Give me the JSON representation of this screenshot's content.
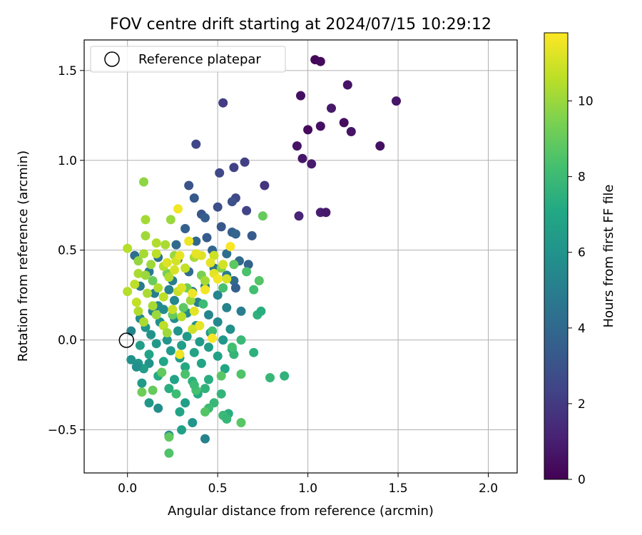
{
  "chart_data": {
    "type": "scatter",
    "title": "FOV centre drift starting at 2024/07/15 10:29:12",
    "xlabel": "Angular distance from reference (arcmin)",
    "ylabel": "Rotation from reference (arcmin)",
    "xlim": [
      -0.24,
      2.16
    ],
    "ylim": [
      -0.74,
      1.67
    ],
    "xticks": [
      0.0,
      0.5,
      1.0,
      1.5,
      2.0
    ],
    "xtick_labels": [
      "0.0",
      "0.5",
      "1.0",
      "1.5",
      "2.0"
    ],
    "yticks": [
      -0.5,
      0.0,
      0.5,
      1.0,
      1.5
    ],
    "ytick_labels": [
      "−0.5",
      "0.0",
      "0.5",
      "1.0",
      "1.5"
    ],
    "grid": true,
    "legend": {
      "position": "upper-left",
      "entries": [
        {
          "label": "Reference platepar",
          "marker": "open-circle"
        }
      ]
    },
    "reference_point": {
      "x": 0.0,
      "y": 0.0
    },
    "colorbar": {
      "label": "Hours from first FF file",
      "colormap": "viridis",
      "range": [
        0,
        11.8
      ],
      "ticks": [
        0,
        2,
        4,
        6,
        8,
        10
      ],
      "tick_labels": [
        "0",
        "2",
        "4",
        "6",
        "8",
        "10"
      ]
    },
    "points": [
      [
        1.04,
        1.56,
        0.2
      ],
      [
        1.07,
        1.55,
        0.3
      ],
      [
        0.96,
        1.36,
        0.5
      ],
      [
        1.22,
        1.42,
        0.6
      ],
      [
        1.49,
        1.33,
        0.7
      ],
      [
        1.13,
        1.29,
        0.8
      ],
      [
        1.2,
        1.21,
        0.4
      ],
      [
        1.07,
        1.19,
        0.5
      ],
      [
        1.0,
        1.17,
        0.3
      ],
      [
        1.24,
        1.16,
        0.6
      ],
      [
        0.94,
        1.08,
        0.6
      ],
      [
        1.4,
        1.08,
        0.5
      ],
      [
        0.97,
        1.01,
        0.7
      ],
      [
        1.02,
        0.98,
        0.9
      ],
      [
        1.07,
        0.71,
        1.0
      ],
      [
        1.1,
        0.71,
        0.8
      ],
      [
        0.95,
        0.69,
        1.2
      ],
      [
        0.53,
        1.32,
        2.1
      ],
      [
        0.38,
        1.09,
        2.5
      ],
      [
        0.65,
        0.99,
        2.2
      ],
      [
        0.59,
        0.96,
        2.3
      ],
      [
        0.51,
        0.93,
        2.6
      ],
      [
        0.76,
        0.86,
        1.8
      ],
      [
        0.34,
        0.86,
        3.0
      ],
      [
        0.6,
        0.79,
        2.6
      ],
      [
        0.37,
        0.79,
        3.3
      ],
      [
        0.58,
        0.77,
        2.9
      ],
      [
        0.5,
        0.74,
        2.8
      ],
      [
        0.66,
        0.72,
        2.4
      ],
      [
        0.41,
        0.7,
        3.1
      ],
      [
        0.43,
        0.68,
        3.5
      ],
      [
        0.52,
        0.63,
        3.2
      ],
      [
        0.32,
        0.62,
        3.6
      ],
      [
        0.58,
        0.6,
        3.6
      ],
      [
        0.6,
        0.59,
        3.8
      ],
      [
        0.44,
        0.57,
        3.4
      ],
      [
        0.69,
        0.58,
        3.3
      ],
      [
        0.38,
        0.55,
        4.0
      ],
      [
        0.27,
        0.53,
        4.1
      ],
      [
        0.47,
        0.5,
        3.9
      ],
      [
        0.55,
        0.48,
        4.2
      ],
      [
        0.04,
        0.47,
        4.3
      ],
      [
        0.17,
        0.46,
        4.5
      ],
      [
        0.28,
        0.45,
        4.4
      ],
      [
        0.62,
        0.44,
        4.0
      ],
      [
        0.67,
        0.42,
        3.7
      ],
      [
        0.48,
        0.4,
        4.6
      ],
      [
        0.34,
        0.38,
        4.2
      ],
      [
        0.12,
        0.38,
        4.8
      ],
      [
        0.55,
        0.36,
        4.9
      ],
      [
        0.25,
        0.33,
        5.0
      ],
      [
        0.59,
        0.33,
        4.1
      ],
      [
        0.07,
        0.3,
        4.7
      ],
      [
        0.43,
        0.3,
        5.1
      ],
      [
        0.6,
        0.29,
        3.6
      ],
      [
        0.23,
        0.28,
        5.2
      ],
      [
        0.36,
        0.27,
        5.0
      ],
      [
        0.15,
        0.26,
        4.9
      ],
      [
        0.5,
        0.25,
        5.3
      ],
      [
        0.26,
        0.22,
        5.4
      ],
      [
        0.39,
        0.21,
        5.1
      ],
      [
        0.17,
        0.19,
        5.5
      ],
      [
        0.55,
        0.18,
        5.2
      ],
      [
        0.2,
        0.17,
        5.6
      ],
      [
        0.63,
        0.16,
        5.0
      ],
      [
        0.14,
        0.16,
        5.3
      ],
      [
        0.33,
        0.15,
        5.7
      ],
      [
        0.45,
        0.14,
        5.4
      ],
      [
        0.26,
        0.12,
        5.8
      ],
      [
        0.07,
        0.12,
        5.6
      ],
      [
        0.18,
        0.1,
        5.9
      ],
      [
        0.5,
        0.1,
        5.5
      ],
      [
        0.38,
        0.08,
        5.8
      ],
      [
        0.1,
        0.07,
        6.0
      ],
      [
        0.57,
        0.06,
        5.9
      ],
      [
        0.28,
        0.05,
        6.1
      ],
      [
        0.02,
        0.05,
        5.3
      ],
      [
        0.46,
        0.04,
        6.2
      ],
      [
        0.13,
        0.03,
        6.0
      ],
      [
        0.33,
        0.02,
        6.3
      ],
      [
        0.22,
        0.0,
        6.1
      ],
      [
        0.53,
        0.0,
        6.2
      ],
      [
        0.4,
        -0.01,
        6.4
      ],
      [
        0.07,
        -0.03,
        6.5
      ],
      [
        0.16,
        -0.02,
        6.3
      ],
      [
        0.3,
        -0.03,
        6.6
      ],
      [
        0.45,
        -0.04,
        6.5
      ],
      [
        0.58,
        -0.05,
        6.7
      ],
      [
        0.24,
        -0.06,
        6.4
      ],
      [
        0.37,
        -0.07,
        6.8
      ],
      [
        0.12,
        -0.08,
        6.9
      ],
      [
        0.02,
        -0.11,
        5.9
      ],
      [
        0.5,
        -0.09,
        6.7
      ],
      [
        0.29,
        -0.1,
        6.5
      ],
      [
        0.2,
        -0.12,
        7.0
      ],
      [
        0.06,
        -0.13,
        6.2
      ],
      [
        0.12,
        -0.13,
        6.0
      ],
      [
        0.41,
        -0.13,
        6.9
      ],
      [
        0.32,
        -0.15,
        7.1
      ],
      [
        0.09,
        -0.16,
        6.5
      ],
      [
        0.54,
        -0.16,
        7.0
      ],
      [
        0.05,
        -0.15,
        5.8
      ],
      [
        0.17,
        -0.2,
        7.2
      ],
      [
        0.26,
        -0.22,
        6.8
      ],
      [
        0.45,
        -0.22,
        7.3
      ],
      [
        0.36,
        -0.23,
        7.5
      ],
      [
        0.08,
        -0.24,
        6.4
      ],
      [
        0.23,
        -0.27,
        7.4
      ],
      [
        0.43,
        -0.27,
        7.6
      ],
      [
        0.39,
        -0.3,
        7.2
      ],
      [
        0.52,
        -0.3,
        7.7
      ],
      [
        0.32,
        -0.35,
        6.6
      ],
      [
        0.48,
        -0.35,
        7.8
      ],
      [
        0.12,
        -0.35,
        6.2
      ],
      [
        0.17,
        -0.38,
        5.7
      ],
      [
        0.29,
        -0.4,
        6.9
      ],
      [
        0.45,
        -0.38,
        8.0
      ],
      [
        0.56,
        -0.41,
        7.4
      ],
      [
        0.36,
        -0.46,
        6.1
      ],
      [
        0.3,
        -0.5,
        6.7
      ],
      [
        0.23,
        -0.53,
        5.6
      ],
      [
        0.43,
        -0.55,
        5.2
      ],
      [
        0.53,
        -0.42,
        7.9
      ],
      [
        0.55,
        -0.44,
        7.8
      ],
      [
        0.79,
        -0.21,
        7.8
      ],
      [
        0.87,
        -0.2,
        7.6
      ],
      [
        0.7,
        -0.07,
        7.5
      ],
      [
        0.59,
        -0.08,
        7.7
      ],
      [
        0.63,
        0.0,
        7.9
      ],
      [
        0.72,
        0.14,
        7.6
      ],
      [
        0.74,
        0.16,
        7.4
      ],
      [
        0.7,
        0.28,
        8.2
      ],
      [
        0.66,
        0.38,
        8.4
      ],
      [
        0.73,
        0.33,
        8.6
      ],
      [
        0.75,
        0.69,
        9.0
      ],
      [
        0.59,
        0.42,
        8.8
      ],
      [
        0.63,
        -0.19,
        8.5
      ],
      [
        0.63,
        -0.46,
        8.7
      ],
      [
        0.23,
        -0.63,
        8.5
      ],
      [
        0.23,
        -0.54,
        8.9
      ],
      [
        0.08,
        -0.29,
        9.2
      ],
      [
        0.14,
        -0.28,
        9.0
      ],
      [
        0.27,
        -0.3,
        8.1
      ],
      [
        0.38,
        -0.28,
        8.3
      ],
      [
        0.43,
        -0.4,
        8.6
      ],
      [
        0.37,
        -0.25,
        8.0
      ],
      [
        0.32,
        -0.19,
        8.4
      ],
      [
        0.19,
        -0.18,
        8.9
      ],
      [
        0.52,
        -0.2,
        8.7
      ],
      [
        0.58,
        -0.04,
        8.2
      ],
      [
        0.47,
        0.05,
        8.1
      ],
      [
        0.42,
        0.2,
        8.0
      ],
      [
        0.53,
        0.29,
        8.3
      ],
      [
        0.31,
        0.18,
        8.8
      ],
      [
        0.25,
        0.14,
        9.0
      ],
      [
        0.14,
        0.33,
        9.1
      ],
      [
        0.22,
        0.37,
        9.3
      ],
      [
        0.33,
        0.29,
        9.2
      ],
      [
        0.41,
        0.36,
        9.4
      ],
      [
        0.52,
        0.4,
        9.6
      ],
      [
        0.09,
        0.88,
        9.8
      ],
      [
        0.1,
        0.67,
        10.2
      ],
      [
        0.24,
        0.67,
        10.0
      ],
      [
        0.1,
        0.58,
        10.1
      ],
      [
        0.16,
        0.54,
        10.4
      ],
      [
        0.21,
        0.53,
        10.3
      ],
      [
        0.0,
        0.51,
        10.5
      ],
      [
        0.09,
        0.48,
        10.2
      ],
      [
        0.16,
        0.48,
        10.6
      ],
      [
        0.26,
        0.47,
        10.0
      ],
      [
        0.37,
        0.46,
        10.3
      ],
      [
        0.06,
        0.44,
        9.9
      ],
      [
        0.13,
        0.42,
        10.1
      ],
      [
        0.2,
        0.41,
        10.5
      ],
      [
        0.32,
        0.4,
        10.7
      ],
      [
        0.06,
        0.37,
        10.3
      ],
      [
        0.1,
        0.36,
        10.0
      ],
      [
        0.23,
        0.35,
        10.4
      ],
      [
        0.43,
        0.33,
        10.2
      ],
      [
        0.04,
        0.31,
        10.6
      ],
      [
        0.17,
        0.29,
        10.4
      ],
      [
        0.28,
        0.27,
        10.8
      ],
      [
        0.0,
        0.27,
        10.5
      ],
      [
        0.11,
        0.26,
        10.3
      ],
      [
        0.2,
        0.24,
        10.6
      ],
      [
        0.35,
        0.22,
        10.1
      ],
      [
        0.05,
        0.21,
        10.7
      ],
      [
        0.14,
        0.19,
        10.2
      ],
      [
        0.25,
        0.17,
        10.8
      ],
      [
        0.06,
        0.16,
        10.4
      ],
      [
        0.16,
        0.14,
        10.0
      ],
      [
        0.3,
        0.13,
        10.5
      ],
      [
        0.09,
        0.1,
        10.3
      ],
      [
        0.2,
        0.08,
        10.6
      ],
      [
        0.36,
        0.06,
        10.9
      ],
      [
        0.22,
        0.04,
        10.1
      ],
      [
        0.48,
        0.47,
        10.9
      ],
      [
        0.27,
        0.44,
        11.0
      ],
      [
        0.41,
        0.47,
        11.2
      ],
      [
        0.53,
        0.42,
        11.0
      ],
      [
        0.46,
        0.43,
        11.3
      ],
      [
        0.29,
        0.47,
        11.4
      ],
      [
        0.3,
        0.29,
        11.2
      ],
      [
        0.36,
        0.26,
        11.5
      ],
      [
        0.48,
        0.37,
        11.3
      ],
      [
        0.5,
        0.34,
        11.6
      ],
      [
        0.55,
        0.34,
        11.1
      ],
      [
        0.57,
        0.52,
        11.7
      ],
      [
        0.34,
        0.55,
        11.5
      ],
      [
        0.28,
        0.73,
        11.6
      ],
      [
        0.4,
        0.08,
        11.4
      ],
      [
        0.47,
        0.01,
        11.7
      ],
      [
        0.29,
        -0.08,
        11.5
      ],
      [
        0.22,
        0.43,
        11.2
      ],
      [
        0.37,
        0.16,
        11.3
      ],
      [
        0.43,
        0.28,
        11.6
      ],
      [
        0.26,
        0.39,
        11.1
      ],
      [
        0.38,
        0.48,
        11.4
      ]
    ]
  }
}
